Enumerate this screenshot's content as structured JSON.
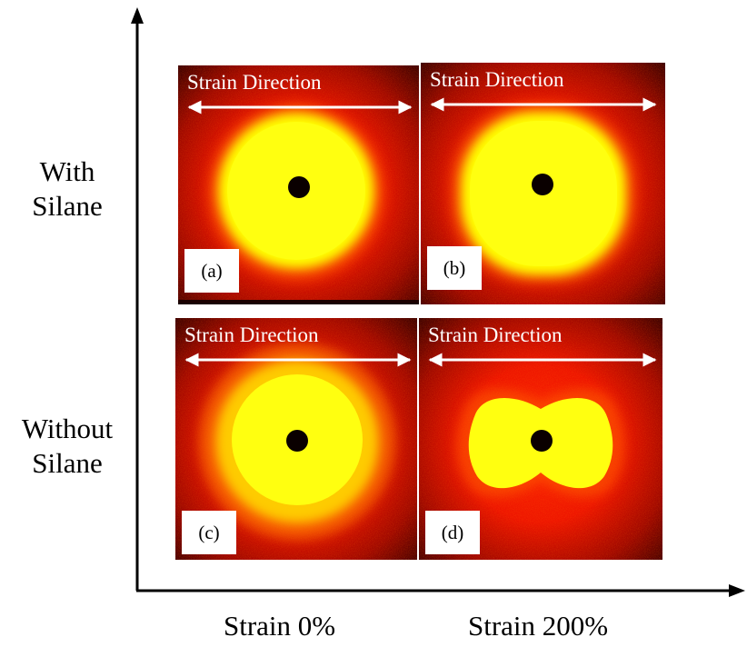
{
  "axis": {
    "x_label_left": "Strain 0%",
    "x_label_right": "Strain 200%"
  },
  "rows": [
    {
      "line1": "With",
      "line2": "Silane"
    },
    {
      "line1": "Without",
      "line2": "Silane"
    }
  ],
  "panels": [
    {
      "id": "a",
      "tag": "(a)",
      "caption": "Strain Direction",
      "pattern": "isotropic-circle"
    },
    {
      "id": "b",
      "tag": "(b)",
      "caption": "Strain Direction",
      "pattern": "slightly-squared"
    },
    {
      "id": "c",
      "tag": "(c)",
      "caption": "Strain Direction",
      "pattern": "diffuse-circle"
    },
    {
      "id": "d",
      "tag": "(d)",
      "caption": "Strain Direction",
      "pattern": "butterfly"
    }
  ],
  "colors": {
    "core": "#ffff00",
    "halo": "#ff1a00",
    "background": "#5a0000",
    "beam_stop": "#0a0000",
    "arrow": "#ffffff"
  }
}
